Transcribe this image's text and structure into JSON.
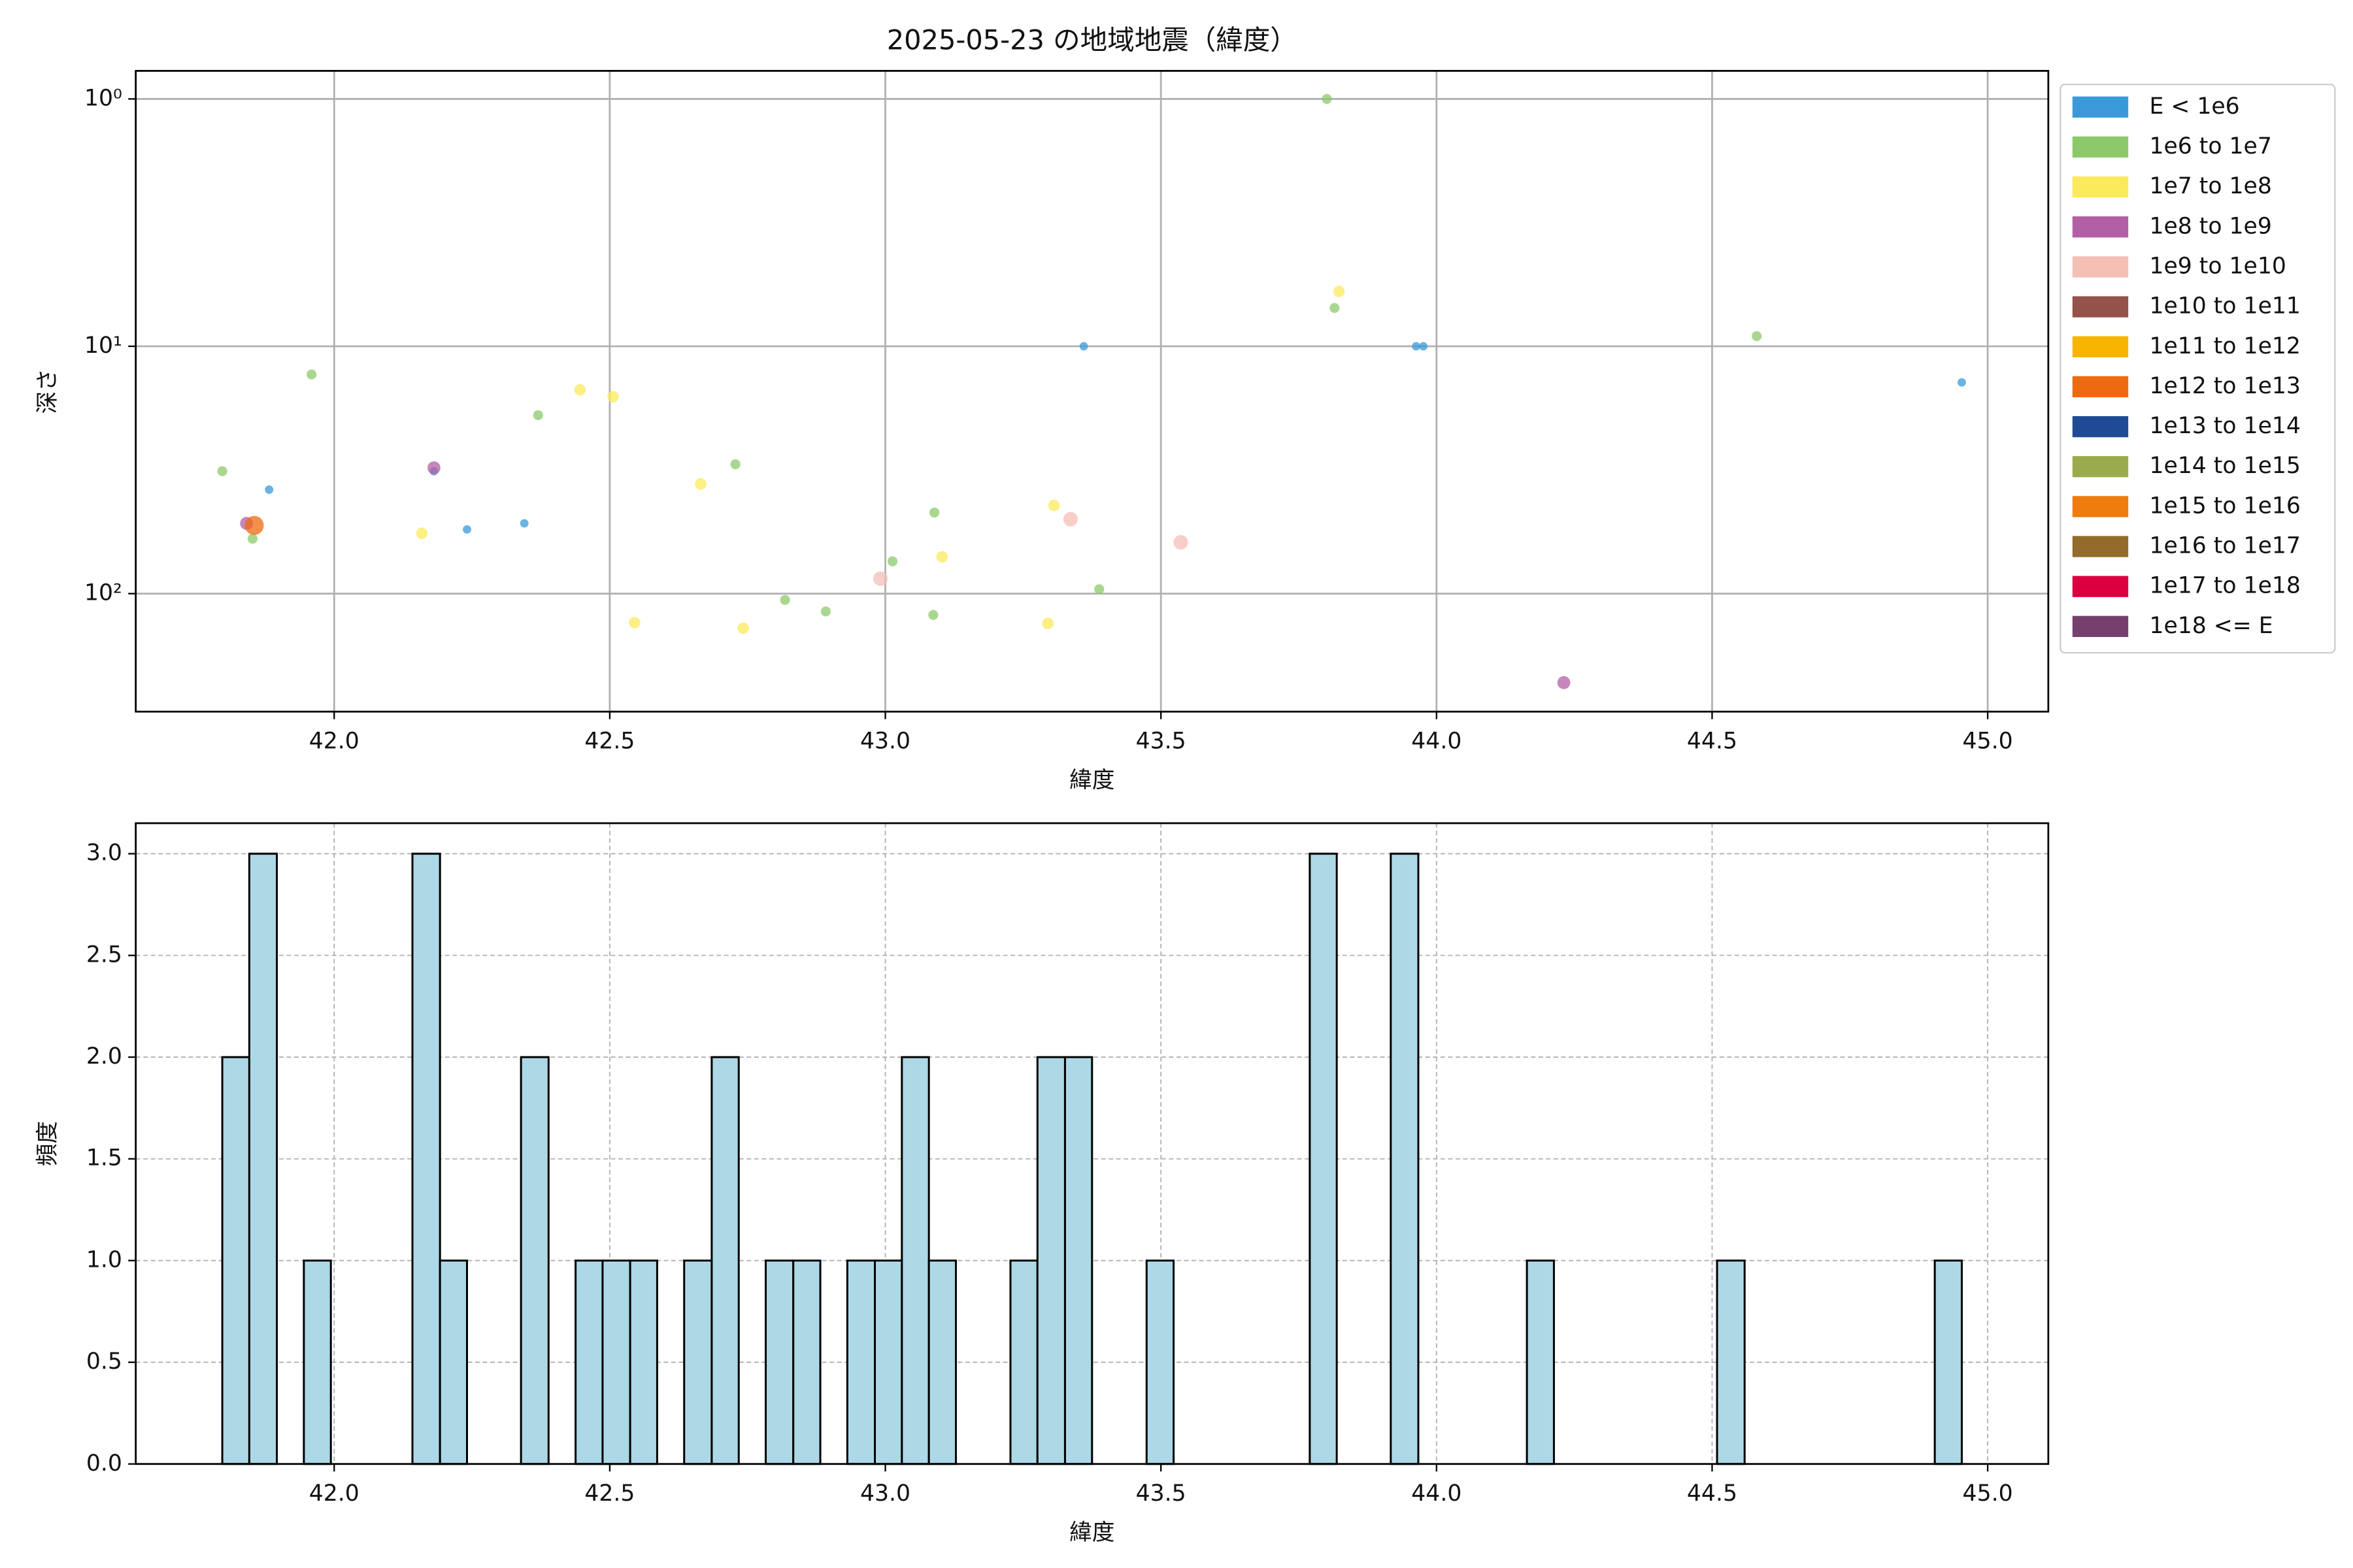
{
  "chart_data": [
    {
      "type": "scatter",
      "title": "2025-05-23 の地域地震（緯度）",
      "xlabel": "緯度",
      "ylabel": "深さ",
      "xlim": [
        41.64,
        45.11
      ],
      "xticks": [
        {
          "value": 42,
          "label": "42.0"
        },
        {
          "value": 42.5,
          "label": "42.5"
        },
        {
          "value": 43,
          "label": "43.0"
        },
        {
          "value": 43.5,
          "label": "43.5"
        },
        {
          "value": 44,
          "label": "44.0"
        },
        {
          "value": 44.5,
          "label": "44.5"
        },
        {
          "value": 45,
          "label": "45.0"
        }
      ],
      "ylim": [
        0.77,
        300
      ],
      "yscale": "log",
      "y_inverted": true,
      "yticks": [
        {
          "value": 1,
          "label": "10⁰"
        },
        {
          "value": 10,
          "label": "10¹"
        },
        {
          "value": 100,
          "label": "10²"
        }
      ],
      "grid": true,
      "legend": "outside right",
      "series": [
        {
          "name": "E < 1e6",
          "color": "#3a9ad9",
          "x": [
            41.882,
            42.181,
            42.241,
            42.345,
            43.36,
            43.963,
            43.976,
            44.953
          ],
          "y": [
            38,
            32,
            55,
            52,
            10,
            10,
            10,
            14
          ]
        },
        {
          "name": "1e6 to 1e7",
          "color": "#8dc96b",
          "x": [
            41.797,
            41.852,
            41.959,
            42.37,
            42.728,
            42.818,
            42.892,
            43.013,
            43.087,
            43.089,
            43.388,
            43.801,
            43.815,
            44.581
          ],
          "y": [
            32,
            60,
            13,
            19,
            30,
            106,
            118,
            74,
            122,
            47,
            96,
            1,
            7,
            9.1
          ]
        },
        {
          "name": "1e7 to 1e8",
          "color": "#fbea5b",
          "x": [
            42.159,
            42.446,
            42.506,
            42.545,
            42.665,
            42.742,
            43.103,
            43.295,
            43.306,
            43.823
          ],
          "y": [
            57,
            15,
            16,
            131,
            36,
            138,
            71,
            132,
            44,
            6
          ]
        },
        {
          "name": "1e8 to 1e9",
          "color": "#b35fa5",
          "x": [
            41.841,
            42.181,
            44.231
          ],
          "y": [
            52,
            31,
            229
          ]
        },
        {
          "name": "1e9 to 1e10",
          "color": "#f4bfb5",
          "x": [
            42.991,
            43.336,
            43.536
          ],
          "y": [
            87,
            50,
            62
          ]
        },
        {
          "name": "1e10 to 1e11",
          "color": "#94524a",
          "x": [],
          "y": []
        },
        {
          "name": "1e11 to 1e12",
          "color": "#f7b500",
          "x": [],
          "y": []
        },
        {
          "name": "1e12 to 1e13",
          "color": "#ee6a10",
          "x": [
            41.855
          ],
          "y": [
            53
          ]
        },
        {
          "name": "1e13 to 1e14",
          "color": "#1e4b94",
          "x": [],
          "y": []
        },
        {
          "name": "1e14 to 1e15",
          "color": "#9aab4d",
          "x": [],
          "y": []
        },
        {
          "name": "1e15 to 1e16",
          "color": "#ee7c0e",
          "x": [],
          "y": []
        },
        {
          "name": "1e16 to 1e17",
          "color": "#936b2c",
          "x": [],
          "y": []
        },
        {
          "name": "1e17 to 1e18",
          "color": "#dc0040",
          "x": [],
          "y": []
        },
        {
          "name": "1e18 <= E",
          "color": "#76406e",
          "x": [],
          "y": []
        }
      ]
    },
    {
      "type": "histogram",
      "xlabel": "緯度",
      "ylabel": "頻度",
      "color": "#add8e6",
      "edgecolor": "#000000",
      "xlim": [
        41.64,
        45.11
      ],
      "xticks": [
        {
          "value": 42,
          "label": "42.0"
        },
        {
          "value": 42.5,
          "label": "42.5"
        },
        {
          "value": 43,
          "label": "43.0"
        },
        {
          "value": 43.5,
          "label": "43.5"
        },
        {
          "value": 44,
          "label": "44.0"
        },
        {
          "value": 44.5,
          "label": "44.5"
        },
        {
          "value": 45,
          "label": "45.0"
        }
      ],
      "ylim": [
        0,
        3.15
      ],
      "yticks": [
        {
          "value": 0,
          "label": "0.0"
        },
        {
          "value": 0.5,
          "label": "0.5"
        },
        {
          "value": 1,
          "label": "1.0"
        },
        {
          "value": 1.5,
          "label": "1.5"
        },
        {
          "value": 2,
          "label": "2.0"
        },
        {
          "value": 2.5,
          "label": "2.5"
        },
        {
          "value": 3,
          "label": "3.0"
        }
      ],
      "grid": true,
      "grid_style": "dashed",
      "bins": [
        41.797,
        41.846,
        41.896,
        41.945,
        41.994,
        42.044,
        42.093,
        42.142,
        42.192,
        42.241,
        42.29,
        42.339,
        42.389,
        42.438,
        42.487,
        42.537,
        42.586,
        42.635,
        42.685,
        42.734,
        42.783,
        42.833,
        42.882,
        42.931,
        42.981,
        43.03,
        43.079,
        43.128,
        43.178,
        43.227,
        43.276,
        43.326,
        43.375,
        43.424,
        43.474,
        43.523,
        43.572,
        43.622,
        43.671,
        43.72,
        43.77,
        43.819,
        43.868,
        43.917,
        43.967,
        44.016,
        44.065,
        44.115,
        44.164,
        44.213,
        44.263,
        44.312,
        44.361,
        44.411,
        44.46,
        44.509,
        44.559,
        44.608,
        44.657,
        44.706,
        44.756,
        44.805,
        44.854,
        44.904,
        44.953
      ],
      "values": [
        2,
        3,
        0,
        1,
        0,
        0,
        0,
        3,
        1,
        0,
        0,
        2,
        0,
        1,
        1,
        1,
        0,
        1,
        2,
        0,
        1,
        1,
        0,
        1,
        1,
        2,
        1,
        0,
        0,
        1,
        2,
        2,
        0,
        0,
        1,
        0,
        0,
        0,
        0,
        0,
        3,
        0,
        0,
        3,
        0,
        0,
        0,
        0,
        1,
        0,
        0,
        0,
        0,
        0,
        0,
        1,
        0,
        0,
        0,
        0,
        0,
        0,
        0,
        1
      ]
    }
  ]
}
